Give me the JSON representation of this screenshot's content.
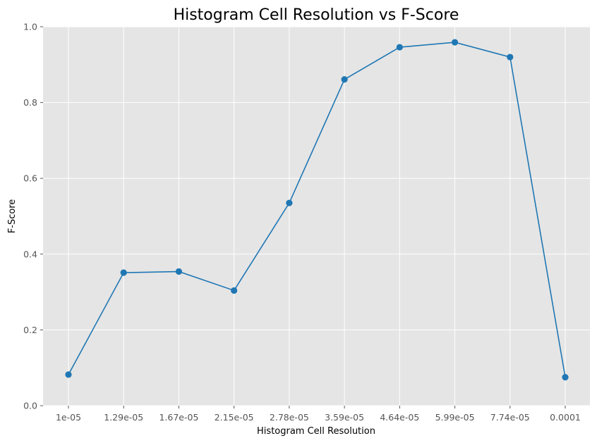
{
  "chart_data": {
    "type": "line",
    "title": "Histogram Cell Resolution vs F-Score",
    "xlabel": "Histogram Cell Resolution",
    "ylabel": "F-Score",
    "categories": [
      "1e-05",
      "1.29e-05",
      "1.67e-05",
      "2.15e-05",
      "2.78e-05",
      "3.59e-05",
      "4.64e-05",
      "5.99e-05",
      "7.74e-05",
      "0.0001"
    ],
    "series": [
      {
        "values": [
          0.082,
          0.351,
          0.354,
          0.304,
          0.535,
          0.861,
          0.946,
          0.959,
          0.92,
          0.075
        ]
      }
    ],
    "ylim": [
      0,
      1.0
    ],
    "yticks": [
      "0.0",
      "0.2",
      "0.4",
      "0.6",
      "0.8",
      "1.0"
    ],
    "grid": true,
    "line_color": "#1f77b4",
    "background_color": "#e5e5e5",
    "grid_color": "#ffffff"
  }
}
